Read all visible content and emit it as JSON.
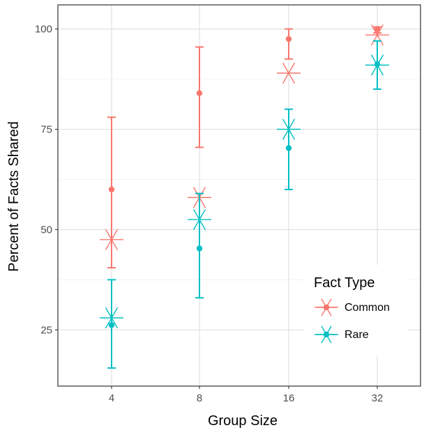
{
  "chart_data": {
    "type": "scatter",
    "xlabel": "Group Size",
    "ylabel": "Percent of Facts Shared",
    "categories": [
      "4",
      "8",
      "16",
      "32"
    ],
    "ylim": [
      11,
      106
    ],
    "yticks": [
      "25",
      "50",
      "75",
      "100"
    ],
    "grid": true,
    "legend": {
      "title": "Fact Type",
      "placement": "bottom-right",
      "entries": [
        "Common",
        "Rare"
      ]
    },
    "series": [
      {
        "name": "Common",
        "color": "#F8766D",
        "observed": [
          60,
          84,
          97.5,
          100
        ],
        "error_low": [
          40.5,
          70.5,
          92.5,
          99
        ],
        "error_high": [
          78,
          95.5,
          100,
          100.5
        ],
        "predicted": [
          47.5,
          58,
          89,
          98.5
        ]
      },
      {
        "name": "Rare",
        "color": "#00BFC4",
        "observed": [
          26.2,
          45.3,
          70.3,
          91.2
        ],
        "error_low": [
          15.5,
          33,
          60,
          85
        ],
        "error_high": [
          37.5,
          59,
          80,
          97
        ],
        "predicted": [
          28,
          52.5,
          75,
          91
        ]
      }
    ]
  }
}
